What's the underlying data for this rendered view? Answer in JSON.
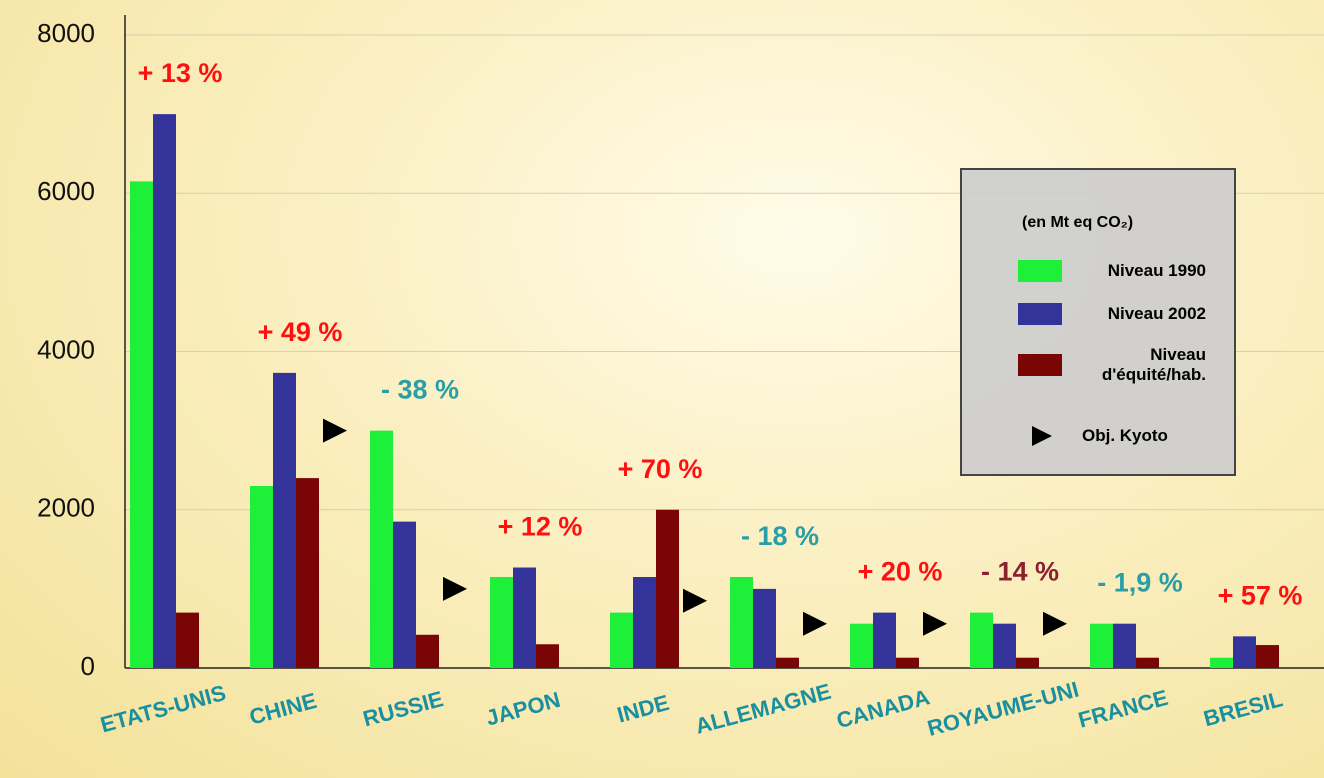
{
  "chart_data": {
    "type": "bar",
    "categories": [
      "ETATS-UNIS",
      "CHINE",
      "RUSSIE",
      "JAPON",
      "INDE",
      "ALLEMAGNE",
      "CANADA",
      "ROYAUME-UNI",
      "FRANCE",
      "BRESIL"
    ],
    "series": [
      {
        "name": "Niveau 1990",
        "color": "#1ef03a",
        "values": [
          6150,
          2300,
          3000,
          1150,
          700,
          1150,
          560,
          700,
          560,
          130
        ]
      },
      {
        "name": "Niveau 2002",
        "color": "#333399",
        "values": [
          7000,
          3730,
          1850,
          1270,
          1150,
          1000,
          700,
          560,
          560,
          400
        ]
      },
      {
        "name": "Niveau d'équité/hab.",
        "color": "#7a0505",
        "values": [
          700,
          2400,
          420,
          300,
          2000,
          130,
          130,
          130,
          130,
          290
        ]
      },
      {
        "name": "Obj. Kyoto",
        "color": "#000000",
        "style": "marker",
        "values": [
          null,
          null,
          3000,
          1000,
          null,
          850,
          560,
          560,
          560,
          null
        ]
      }
    ],
    "annotations": [
      {
        "text": "+ 13 %",
        "color": "#ff1010"
      },
      {
        "text": "+ 49 %",
        "color": "#ff1010"
      },
      {
        "text": "- 38 %",
        "color": "#2a9ea6"
      },
      {
        "text": "+ 12 %",
        "color": "#ff1010"
      },
      {
        "text": "+ 70 %",
        "color": "#ff1010"
      },
      {
        "text": "- 18 %",
        "color": "#2a9ea6"
      },
      {
        "text": "+ 20 %",
        "color": "#ff1010"
      },
      {
        "text": "- 14 %",
        "color": "#8a2030"
      },
      {
        "text": "- 1,9 %",
        "color": "#2a9ea6"
      },
      {
        "text": "+ 57 %",
        "color": "#ff1010"
      }
    ],
    "legend_title": "(en Mt eq CO₂)",
    "ylim": [
      0,
      8000
    ],
    "yticks": [
      0,
      2000,
      4000,
      6000,
      8000
    ],
    "grid": true
  }
}
